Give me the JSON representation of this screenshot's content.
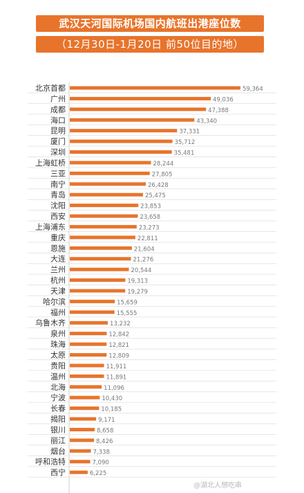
{
  "header": {
    "title": "武汉天河国际机场国内航班出港座位数",
    "subtitle": "（12月30日-1月20日 前50位目的地）"
  },
  "chart_data": {
    "type": "bar",
    "orientation": "horizontal",
    "title": "武汉天河国际机场国内航班出港座位数",
    "subtitle": "（12月30日-1月20日 前50位目的地）",
    "bar_color": "#e8742c",
    "grid": true,
    "categories": [
      "北京首都",
      "广州",
      "成都",
      "海口",
      "昆明",
      "厦门",
      "深圳",
      "上海虹桥",
      "三亚",
      "南宁",
      "青岛",
      "沈阳",
      "西安",
      "上海浦东",
      "重庆",
      "恩施",
      "大连",
      "兰州",
      "杭州",
      "天津",
      "哈尔滨",
      "福州",
      "乌鲁木齐",
      "泉州",
      "珠海",
      "太原",
      "贵阳",
      "温州",
      "北海",
      "宁波",
      "长春",
      "揭阳",
      "银川",
      "丽江",
      "烟台",
      "呼和浩特",
      "西宁"
    ],
    "values": [
      59364,
      49036,
      47388,
      43340,
      37331,
      35712,
      35481,
      28244,
      27805,
      26428,
      25475,
      23853,
      23658,
      23273,
      22811,
      21604,
      21276,
      20544,
      19313,
      19279,
      15659,
      15555,
      13232,
      12842,
      12821,
      12809,
      11911,
      11891,
      11096,
      10430,
      10185,
      9171,
      8658,
      8426,
      7338,
      7090,
      6225
    ],
    "value_labels": [
      "59,364",
      "49,036",
      "47,388",
      "43,340",
      "37,331",
      "35,712",
      "35,481",
      "28,244",
      "27,805",
      "26,428",
      "25,475",
      "23,853",
      "23,658",
      "23,273",
      "22,811",
      "21,604",
      "21,276",
      "20,544",
      "19,313",
      "19,279",
      "15,659",
      "15,555",
      "13,232",
      "12,842",
      "12,821",
      "12,809",
      "11,911",
      "11,891",
      "11,096",
      "10,430",
      "10,185",
      "9,171",
      "8,658",
      "8,426",
      "7,338",
      "7,090",
      "6,225"
    ]
  },
  "watermark": "@湖北人想吃串"
}
